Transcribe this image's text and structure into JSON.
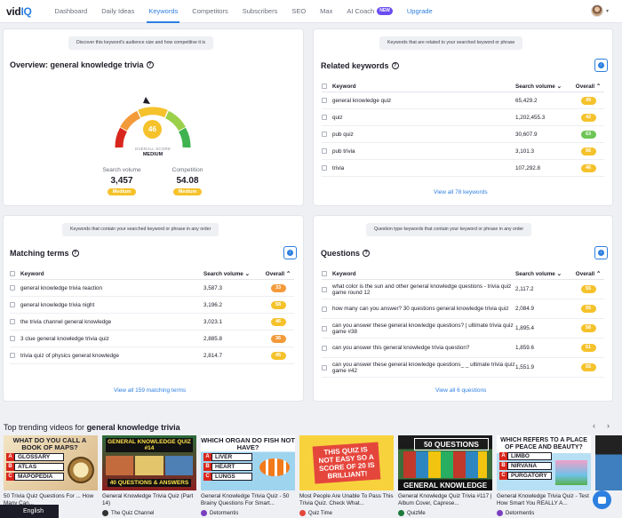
{
  "nav": {
    "logo_a": "vid",
    "logo_b": "IQ",
    "items": [
      "Dashboard",
      "Daily Ideas",
      "Keywords",
      "Competitors",
      "Subscribers",
      "SEO",
      "Max",
      "AI Coach",
      "Upgrade"
    ],
    "new_badge": "NEW",
    "active": "Keywords"
  },
  "overview": {
    "hint": "Discover this keyword's audience size and how competitive it is",
    "title": "Overview: general knowledge trivia",
    "score": "46",
    "overall_score_label": "OVERALL SCORE",
    "overall_level": "MEDIUM",
    "search_volume_label": "Search volume",
    "search_volume_value": "3,457",
    "search_volume_level": "Medium",
    "competition_label": "Competition",
    "competition_value": "54.08",
    "competition_level": "Medium"
  },
  "related": {
    "hint": "Keywords that are related to your searched keyword or phrase",
    "title": "Related keywords",
    "headers": {
      "keyword": "Keyword",
      "volume": "Search volume",
      "overall": "Overall"
    },
    "rows": [
      {
        "keyword": "general knowledge quiz",
        "volume": "65,429.2",
        "overall": "49",
        "color": "#f5c22c"
      },
      {
        "keyword": "quiz",
        "volume": "1,202,455.3",
        "overall": "42",
        "color": "#f5c22c"
      },
      {
        "keyword": "pub quiz",
        "volume": "30,607.9",
        "overall": "63",
        "color": "#6cc554"
      },
      {
        "keyword": "pub trivia",
        "volume": "3,101.3",
        "overall": "56",
        "color": "#f5c22c"
      },
      {
        "keyword": "trivia",
        "volume": "107,292.8",
        "overall": "46",
        "color": "#f5c22c"
      }
    ],
    "view_all": "View all 78 keywords"
  },
  "matching": {
    "hint": "Keywords that contain your searched keyword or phrase in any order",
    "title": "Matching terms",
    "headers": {
      "keyword": "Keyword",
      "volume": "Search volume",
      "overall": "Overall"
    },
    "rows": [
      {
        "keyword": "general knowledge trivia reaction",
        "volume": "3,587.3",
        "overall": "33",
        "color": "#f39a3a"
      },
      {
        "keyword": "general knowledge trivia night",
        "volume": "3,196.2",
        "overall": "58",
        "color": "#f5c22c"
      },
      {
        "keyword": "the trivia channel general knowledge",
        "volume": "3,023.1",
        "overall": "46",
        "color": "#f5c22c"
      },
      {
        "keyword": "3 clue general knowledge trivia quiz",
        "volume": "2,885.8",
        "overall": "36",
        "color": "#f39a3a"
      },
      {
        "keyword": "trivia quiz of physics general knowledge",
        "volume": "2,814.7",
        "overall": "45",
        "color": "#f5c22c"
      }
    ],
    "view_all": "View all 159 matching terms"
  },
  "questions": {
    "hint": "Question type keywords that contain your keyword or phrase in any order",
    "title": "Questions",
    "headers": {
      "keyword": "Keyword",
      "volume": "Search volume",
      "overall": "Overall"
    },
    "rows": [
      {
        "keyword": "what color is the sun and other general knowledge questions - trivia quiz game round 12",
        "volume": "2,117.2",
        "overall": "55",
        "color": "#f5c22c"
      },
      {
        "keyword": "how many can you answer? 30 questions general knowledge trivia quiz",
        "volume": "2,084.9",
        "overall": "55",
        "color": "#f5c22c"
      },
      {
        "keyword": "can you answer these general knowledge questions? | ultimate trivia quiz game #38",
        "volume": "1,895.4",
        "overall": "58",
        "color": "#f5c22c"
      },
      {
        "keyword": "can you answer this general knowledge trivia question?",
        "volume": "1,859.6",
        "overall": "51",
        "color": "#f5c22c"
      },
      {
        "keyword": "can you answer these general knowledge questions_ _ ultimate trivia quiz game #42",
        "volume": "1,551.9",
        "overall": "55",
        "color": "#f5c22c"
      }
    ],
    "view_all": "View all 6 questions"
  },
  "trending": {
    "title_prefix": "Top trending videos for ",
    "title_keyword": "general knowledge trivia",
    "videos": [
      {
        "title": "50 Trivia Quiz Questions For ... How Many Can...",
        "channel": "",
        "thumb_q": "WHAT DO YOU CALL A BOOK OF MAPS?",
        "answers": [
          "GLOSSARY",
          "ATLAS",
          "MAPOPEDIA"
        ]
      },
      {
        "title": "General Knowledge Trivia Quiz (Part 14)",
        "channel": "The Quiz Channel",
        "thumb_q": "GENERAL KNOWLEDGE QUIZ #14",
        "answers": [
          "40 QUESTIONS & ANSWERS"
        ]
      },
      {
        "title": "General Knowledge Trivia Quiz - 50 Brainy Questions For Smart...",
        "channel": "Detormentis",
        "thumb_q": "WHICH ORGAN DO FISH NOT HAVE?",
        "answers": [
          "LIVER",
          "HEART",
          "LUNGS"
        ]
      },
      {
        "title": "Most People Are Unable To Pass This Trivia Quiz. Check What...",
        "channel": "Quiz Time",
        "thumb_q": "THIS QUIZ IS NOT EASY SO A SCORE OF 20 IS BRILLIANT!",
        "answers": []
      },
      {
        "title": "General Knowledge Quiz Trivia #117 | Album Cover, Caprese...",
        "channel": "QuizMe",
        "thumb_q": "50 QUESTIONS",
        "answers": [
          "GENERAL KNOWLEDGE"
        ]
      },
      {
        "title": "General Knowledge Trivia Quiz - Test How Smart You REALLY A...",
        "channel": "Detormentis",
        "thumb_q": "WHICH REFERS TO A PLACE OF PEACE AND BEAUTY?",
        "answers": [
          "LIMBO",
          "NIRVANA",
          "PURGATORY"
        ]
      }
    ]
  },
  "language": "English"
}
